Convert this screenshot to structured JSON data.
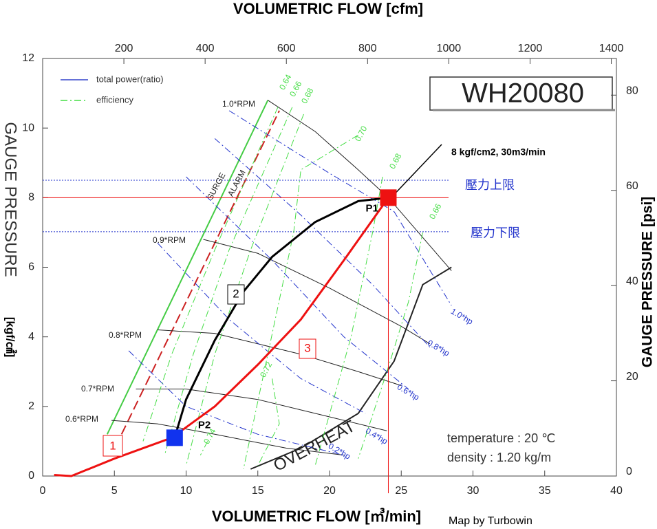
{
  "chart_data": {
    "type": "line",
    "title": "WH20080",
    "x_label": "VOLUMETRIC FLOW [㎥/min]",
    "x2_label": "VOLUMETRIC FLOW [cfm]",
    "y_label": "GAUGE PRESSURE",
    "y_unit": "[kgf/㎠]",
    "y2_label": "GAUGE PRESSURE [psi]",
    "credit": "Map by Turbowin",
    "xlim": [
      0,
      40
    ],
    "xticks": [
      0,
      5,
      10,
      15,
      20,
      25,
      30,
      35,
      40
    ],
    "ylim": [
      0,
      12
    ],
    "yticks": [
      0,
      2,
      4,
      6,
      8,
      10,
      12
    ],
    "x2lim": [
      0,
      1412.6
    ],
    "x2ticks": [
      200,
      400,
      600,
      800,
      1000,
      1200,
      1400
    ],
    "y2lim": [
      0,
      87.7
    ],
    "y2ticks": [
      0,
      20,
      40,
      60,
      80
    ],
    "legend": [
      {
        "label": "total power(ratio)",
        "color": "#3344cc",
        "style": "solid"
      },
      {
        "label": "efficiency",
        "color": "#44dd44",
        "style": "dashdot"
      }
    ],
    "series": [
      {
        "name": "SURGE",
        "color": "#44cc44",
        "style": "solid",
        "width": 2,
        "x": [
          4.5,
          15.7
        ],
        "y": [
          1.2,
          10.8
        ]
      },
      {
        "name": "ALARM",
        "color": "#cc2222",
        "style": "dashed",
        "width": 2,
        "x": [
          5.5,
          16.5
        ],
        "y": [
          1.2,
          10.5
        ]
      },
      {
        "name": "1.0*RPM",
        "color": "#222222",
        "style": "solid",
        "width": 1,
        "x": [
          15.7,
          19,
          22,
          24.1,
          28.5
        ],
        "y": [
          10.8,
          9.9,
          8.8,
          8,
          5.9
        ]
      },
      {
        "name": "0.9*RPM",
        "color": "#222222",
        "style": "solid",
        "width": 1,
        "x": [
          11.2,
          15,
          20,
          25,
          27
        ],
        "y": [
          6.8,
          6.4,
          5.4,
          4.3,
          3.8
        ]
      },
      {
        "name": "0.8*RPM",
        "color": "#222222",
        "style": "solid",
        "width": 1,
        "x": [
          8,
          12,
          18,
          22,
          25
        ],
        "y": [
          4.2,
          4.1,
          3.5,
          3.0,
          2.6
        ]
      },
      {
        "name": "0.7*RPM",
        "color": "#222222",
        "style": "solid",
        "width": 1,
        "x": [
          6.5,
          10,
          15,
          20,
          24
        ],
        "y": [
          2.5,
          2.5,
          2.2,
          1.7,
          1.3
        ]
      },
      {
        "name": "0.6*RPM",
        "color": "#222222",
        "style": "solid",
        "width": 1,
        "x": [
          4.8,
          8,
          12,
          17,
          21
        ],
        "y": [
          1.6,
          1.5,
          1.2,
          0.8,
          0.6
        ]
      },
      {
        "name": "OVERHEAT",
        "color": "#222222",
        "style": "solid",
        "width": 2,
        "x": [
          14.5,
          18,
          22,
          23,
          24.5,
          26.5,
          28.5
        ],
        "y": [
          0.2,
          0.8,
          1.8,
          2.4,
          3.3,
          5.5,
          6.0
        ]
      },
      {
        "name": "1.0*hp",
        "color": "#2233cc",
        "style": "dashdot",
        "width": 1,
        "x": [
          13,
          20,
          24.5,
          28.5
        ],
        "y": [
          10.5,
          8.7,
          7.6,
          4.9
        ]
      },
      {
        "name": "0.8*hp",
        "color": "#2233cc",
        "style": "dashdot",
        "width": 1,
        "x": [
          12,
          18,
          23,
          27
        ],
        "y": [
          9.7,
          7.5,
          5.5,
          3.7
        ]
      },
      {
        "name": "0.6*hp",
        "color": "#2233cc",
        "style": "dashdot",
        "width": 1,
        "x": [
          10,
          16,
          21,
          25.5
        ],
        "y": [
          8.6,
          6.2,
          4.0,
          2.5
        ]
      },
      {
        "name": "0.4*hp",
        "color": "#2233cc",
        "style": "dashdot",
        "width": 1,
        "x": [
          8,
          13,
          18,
          22.5
        ],
        "y": [
          6.7,
          4.5,
          2.8,
          1.8
        ]
      },
      {
        "name": "0.2*hp",
        "color": "#2233cc",
        "style": "dashdot",
        "width": 1,
        "x": [
          6,
          10,
          15,
          21
        ],
        "y": [
          3.6,
          2.0,
          1.2,
          0.6
        ]
      },
      {
        "name": "0.64",
        "color": "#44dd44",
        "style": "dashdot",
        "width": 1,
        "x": [
          16.4,
          12,
          9,
          7
        ],
        "y": [
          10.6,
          6.5,
          3.5,
          1.0
        ]
      },
      {
        "name": "0.66",
        "color": "#44dd44",
        "style": "dashdot",
        "width": 1,
        "x": [
          17.4,
          13,
          10.5,
          8.5
        ],
        "y": [
          10.6,
          6.5,
          3.5,
          0.6
        ]
      },
      {
        "name": "0.68",
        "color": "#44dd44",
        "style": "dashdot",
        "width": 1,
        "x": [
          18.2,
          14.5,
          12,
          10
        ],
        "y": [
          10.4,
          6.5,
          3.5,
          0.3
        ]
      },
      {
        "name": "0.70",
        "color": "#44dd44",
        "style": "dashdot",
        "width": 1,
        "x": [
          22,
          18,
          17.5,
          14
        ],
        "y": [
          9.8,
          8.8,
          7,
          0.2
        ]
      },
      {
        "name": "0.68",
        "color": "#44dd44",
        "style": "dashdot",
        "width": 1,
        "x": [
          23.7,
          23,
          21.5,
          19
        ],
        "y": [
          8.6,
          7,
          4,
          0.3
        ]
      },
      {
        "name": "0.66",
        "color": "#44dd44",
        "style": "dashdot",
        "width": 1,
        "x": [
          26.5,
          25.5,
          24,
          22
        ],
        "y": [
          7.0,
          5,
          3,
          0.5
        ]
      },
      {
        "name": "0.72",
        "color": "#44dd44",
        "style": "dashdot",
        "width": 1,
        "x": [
          16,
          16.5,
          15
        ],
        "y": [
          2.8,
          1.5,
          0.3
        ]
      },
      {
        "name": "0.74",
        "color": "#44dd44",
        "style": "dashdot",
        "width": 1,
        "x": [
          11.5,
          11
        ],
        "y": [
          1.0,
          0.6
        ]
      },
      {
        "name": "2",
        "color": "#000000",
        "style": "solid",
        "width": 3,
        "x": [
          9.2,
          10,
          12,
          14,
          16,
          19,
          22,
          24.1
        ],
        "y": [
          1.1,
          2.2,
          3.9,
          5.3,
          6.3,
          7.3,
          7.9,
          8
        ]
      },
      {
        "name": "3",
        "color": "#ee1111",
        "style": "solid",
        "width": 3,
        "x": [
          0.8,
          2,
          5,
          9,
          12,
          15,
          18,
          21,
          24.1
        ],
        "y": [
          0.03,
          0,
          0.5,
          1.1,
          2,
          3.2,
          4.5,
          6.2,
          8
        ]
      }
    ],
    "points": [
      {
        "name": "P1",
        "x": 24.1,
        "y": 8,
        "color": "#ee1111",
        "crosshair": true
      },
      {
        "name": "P2",
        "x": 9.2,
        "y": 1.1,
        "color": "#1133ee",
        "crosshair": false
      }
    ],
    "hlines": [
      {
        "label": "壓力上限",
        "y": 8.5,
        "color": "#2233cc"
      },
      {
        "label": "壓力下限",
        "y": 7.02,
        "color": "#2233cc"
      }
    ],
    "annotations": [
      "8 kgf/cm2, 30m3/min",
      "temperature : 20 ℃",
      "density : 1.20 kg/m",
      "1"
    ]
  }
}
